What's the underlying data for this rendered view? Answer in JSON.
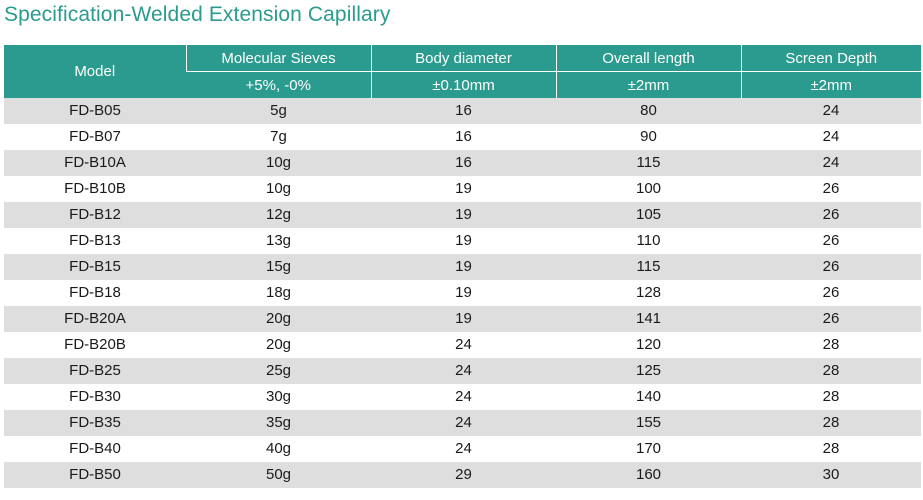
{
  "title": "Specification-Welded Extension Capillary",
  "table": {
    "headers": {
      "model": "Model",
      "sieves": "Molecular Sieves",
      "sieves_tol": "+5%, -0%",
      "body": "Body diameter",
      "body_tol": "±0.10mm",
      "length": "Overall length",
      "length_tol": "±2mm",
      "depth": "Screen Depth",
      "depth_tol": "±2mm"
    },
    "rows": [
      [
        "FD-B05",
        "5g",
        "16",
        "80",
        "24"
      ],
      [
        "FD-B07",
        "7g",
        "16",
        "90",
        "24"
      ],
      [
        "FD-B10A",
        "10g",
        "16",
        "115",
        "24"
      ],
      [
        "FD-B10B",
        "10g",
        "19",
        "100",
        "26"
      ],
      [
        "FD-B12",
        "12g",
        "19",
        "105",
        "26"
      ],
      [
        "FD-B13",
        "13g",
        "19",
        "110",
        "26"
      ],
      [
        "FD-B15",
        "15g",
        "19",
        "115",
        "26"
      ],
      [
        "FD-B18",
        "18g",
        "19",
        "128",
        "26"
      ],
      [
        "FD-B20A",
        "20g",
        "19",
        "141",
        "26"
      ],
      [
        "FD-B20B",
        "20g",
        "24",
        "120",
        "28"
      ],
      [
        "FD-B25",
        "25g",
        "24",
        "125",
        "28"
      ],
      [
        "FD-B30",
        "30g",
        "24",
        "140",
        "28"
      ],
      [
        "FD-B35",
        "35g",
        "24",
        "155",
        "28"
      ],
      [
        "FD-B40",
        "40g",
        "24",
        "170",
        "28"
      ],
      [
        "FD-B50",
        "50g",
        "29",
        "160",
        "30"
      ]
    ]
  },
  "colors": {
    "accent": "#2a9b8e",
    "stripe": "#dedede"
  }
}
